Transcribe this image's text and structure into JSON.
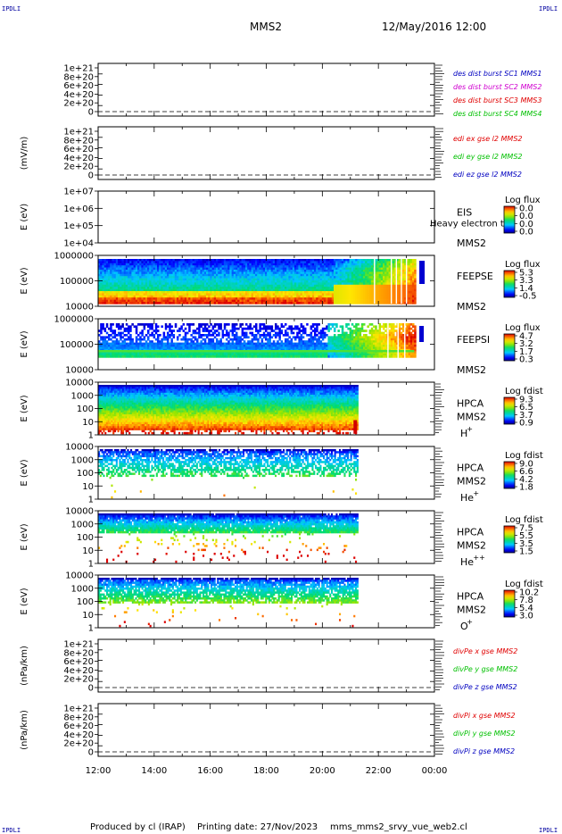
{
  "corners": {
    "top_left": "IPDLI",
    "top_right": "IPDLI",
    "bottom_left": "IPDLI",
    "bottom_right": "IPDLI"
  },
  "header": {
    "spacecraft": "MMS2",
    "datetime": "12/May/2016 12:00"
  },
  "footer": {
    "producer": "Produced by cl (IRAP)",
    "printing_date": "Printing date: 27/Nov/2023",
    "script": "mms_mms2_srvy_vue_web2.cl"
  },
  "time_axis": {
    "ticks": [
      "12:00",
      "14:00",
      "16:00",
      "18:00",
      "20:00",
      "22:00",
      "00:00"
    ]
  },
  "colors": {
    "red": "#e00000",
    "magenta": "#d000d0",
    "green": "#00c000",
    "blue": "#0000c0"
  },
  "chart_data": [
    {
      "type": "line",
      "ylabel": "",
      "ytick_labels": [
        "1e+21",
        "8e+20",
        "6e+20",
        "4e+20",
        "2e+20",
        "0"
      ],
      "legend": [
        {
          "text": "des dist burst SC1 MMS1",
          "color": "blue"
        },
        {
          "text": "des dist burst SC2 MMS2",
          "color": "magenta"
        },
        {
          "text": "des dist burst SC3 MMS3",
          "color": "red"
        },
        {
          "text": "des dist burst SC4 MMS4",
          "color": "green"
        }
      ]
    },
    {
      "type": "line",
      "ylabel": "(mV/m)",
      "ytick_labels": [
        "1e+21",
        "8e+20",
        "6e+20",
        "4e+20",
        "2e+20",
        "0"
      ],
      "legend": [
        {
          "text": "edi ex gse l2 MMS2",
          "color": "red"
        },
        {
          "text": "edi ey gse l2 MMS2",
          "color": "green"
        },
        {
          "text": "edi ez gse l2 MMS2",
          "color": "blue"
        }
      ]
    },
    {
      "type": "heatmap",
      "ylabel": "E (eV)",
      "ytick_labels": [
        "1e+07",
        "1e+06",
        "1e+05",
        "1e+04"
      ],
      "labels": [
        "EIS",
        "MMS2"
      ],
      "overlay": "Heavy electron to",
      "colorbar": {
        "title": "Log flux",
        "ticks": [
          "0.0",
          "0.0",
          "0.0",
          "0.0"
        ]
      }
    },
    {
      "type": "heatmap",
      "ylabel": "E (eV)",
      "ytick_labels": [
        "1000000",
        "100000",
        "10000"
      ],
      "labels": [
        "FEEPSE",
        "MMS2"
      ],
      "colorbar": {
        "title": "Log flux",
        "ticks": [
          "5.3",
          "3.3",
          "1.4",
          "-0.5"
        ]
      }
    },
    {
      "type": "heatmap",
      "ylabel": "E (eV)",
      "ytick_labels": [
        "1000000",
        "100000",
        "10000"
      ],
      "labels": [
        "FEEPSI",
        "MMS2"
      ],
      "colorbar": {
        "title": "Log flux",
        "ticks": [
          "4.7",
          "3.2",
          "1.7",
          "0.3"
        ]
      }
    },
    {
      "type": "heatmap",
      "ylabel": "E (eV)",
      "ytick_labels": [
        "10000",
        "1000",
        "100",
        "10",
        "1"
      ],
      "labels": [
        "HPCA",
        "MMS2"
      ],
      "species": "H",
      "charge": "+",
      "colorbar": {
        "title": "Log fdist",
        "ticks": [
          "9.3",
          "6.5",
          "3.7",
          "0.9"
        ]
      }
    },
    {
      "type": "heatmap",
      "ylabel": "E (eV)",
      "ytick_labels": [
        "10000",
        "1000",
        "100",
        "10",
        "1"
      ],
      "labels": [
        "HPCA",
        "MMS2"
      ],
      "species": "He",
      "charge": "+",
      "colorbar": {
        "title": "Log fdist",
        "ticks": [
          "9.0",
          "6.6",
          "4.2",
          "1.8"
        ]
      }
    },
    {
      "type": "heatmap",
      "ylabel": "E (eV)",
      "ytick_labels": [
        "10000",
        "1000",
        "100",
        "10",
        "1"
      ],
      "labels": [
        "HPCA",
        "MMS2"
      ],
      "species": "He",
      "charge": "++",
      "colorbar": {
        "title": "Log fdist",
        "ticks": [
          "7.5",
          "5.5",
          "3.5",
          "1.5"
        ]
      }
    },
    {
      "type": "heatmap",
      "ylabel": "E (eV)",
      "ytick_labels": [
        "10000",
        "1000",
        "100",
        "10",
        "1"
      ],
      "labels": [
        "HPCA",
        "MMS2"
      ],
      "species": "O",
      "charge": "+",
      "colorbar": {
        "title": "Log fdist",
        "ticks": [
          "10.2",
          "7.8",
          "5.4",
          "3.0"
        ]
      }
    },
    {
      "type": "line",
      "ylabel": "(nPa/km)",
      "ytick_labels": [
        "1e+21",
        "8e+20",
        "6e+20",
        "4e+20",
        "2e+20",
        "0"
      ],
      "legend": [
        {
          "text": "divPe x gse MMS2",
          "color": "red"
        },
        {
          "text": "divPe y gse MMS2",
          "color": "green"
        },
        {
          "text": "divPe z gse MMS2",
          "color": "blue"
        }
      ]
    },
    {
      "type": "line",
      "ylabel": "(nPa/km)",
      "ytick_labels": [
        "1e+21",
        "8e+20",
        "6e+20",
        "4e+20",
        "2e+20",
        "0"
      ],
      "legend": [
        {
          "text": "divPi x gse MMS2",
          "color": "red"
        },
        {
          "text": "divPi y gse MMS2",
          "color": "green"
        },
        {
          "text": "divPi z gse MMS2",
          "color": "blue"
        }
      ]
    }
  ]
}
